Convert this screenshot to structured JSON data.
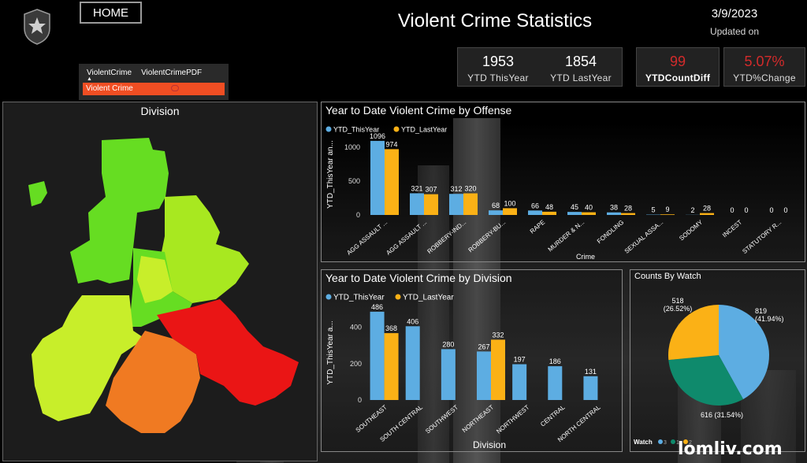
{
  "header": {
    "home_label": "HOME",
    "title": "Violent Crime Statistics",
    "date": "3/9/2023",
    "updated_label": "Updated on"
  },
  "slicer": {
    "tabs": [
      "ViolentCrime",
      "ViolentCrimePDF"
    ],
    "selected_row": "Violent Crime"
  },
  "kpis": {
    "ytd_this_year": {
      "value": "1953",
      "label": "YTD  ThisYear"
    },
    "ytd_last_year": {
      "value": "1854",
      "label": "YTD  LastYear"
    },
    "count_diff": {
      "value": "99",
      "label": "YTDCountDiff"
    },
    "pct_change": {
      "value": "5.07%",
      "label": "YTD%Change"
    }
  },
  "map": {
    "title": "Division",
    "colors": {
      "green": "#66dd22",
      "lime": "#a8e820",
      "yellowgreen": "#c8ee2a",
      "orange": "#f07a22",
      "red": "#ea1515"
    }
  },
  "colors": {
    "this_year": "#5dade2",
    "last_year": "#fbb116"
  },
  "chart_data": [
    {
      "type": "bar",
      "title": "Year to Date Violent Crime by Offense",
      "xlabel": "Crime",
      "ylabel": "YTD_ThisYear an...",
      "ylim": [
        0,
        1200
      ],
      "yticks": [
        0,
        500,
        1000
      ],
      "legend": "top-left",
      "categories": [
        "AGG ASSAULT ...",
        "AGG ASSAULT ...",
        "ROBBERY-IND...",
        "ROBBERY-BU...",
        "RAPE",
        "MURDER & N...",
        "FONDLING",
        "SEXUAL ASSA...",
        "SODOMY",
        "INCEST",
        "STATUTORY R..."
      ],
      "series": [
        {
          "name": "YTD_ThisYear",
          "values": [
            1096,
            321,
            312,
            68,
            66,
            45,
            38,
            5,
            2,
            0,
            0
          ]
        },
        {
          "name": "YTD_LastYear",
          "values": [
            974,
            307,
            320,
            100,
            48,
            40,
            28,
            9,
            28,
            0,
            0
          ]
        }
      ]
    },
    {
      "type": "bar",
      "title": "Year to Date Violent Crime by Division",
      "xlabel": "Division",
      "ylabel": "YTD_ThisYear a...",
      "ylim": [
        0,
        520
      ],
      "yticks": [
        0,
        200,
        400
      ],
      "legend": "top-left",
      "categories": [
        "SOUTHEAST",
        "SOUTH CENTRAL",
        "SOUTHWEST",
        "NORTHEAST",
        "NORTHWEST",
        "CENTRAL",
        "NORTH CENTRAL"
      ],
      "series": [
        {
          "name": "YTD_ThisYear",
          "values": [
            486,
            406,
            280,
            267,
            197,
            186,
            131
          ]
        },
        {
          "name": "YTD_LastYear",
          "values": [
            368,
            0,
            0,
            332,
            0,
            0,
            0
          ]
        }
      ]
    },
    {
      "type": "pie",
      "title": "Counts By Watch",
      "legend": "bottom-left",
      "legend_title": "Watch",
      "slices": [
        {
          "name": "3",
          "value": 819,
          "label": "819\n(41.94%)",
          "color": "#5dade2"
        },
        {
          "name": "1",
          "value": 616,
          "label": "616 (31.54%)",
          "color": "#0f8a6c"
        },
        {
          "name": "2",
          "value": 518,
          "label": "518\n(26.52%)",
          "color": "#fbb116"
        }
      ]
    }
  ],
  "footer": {
    "watermark": "lomliv.com"
  }
}
